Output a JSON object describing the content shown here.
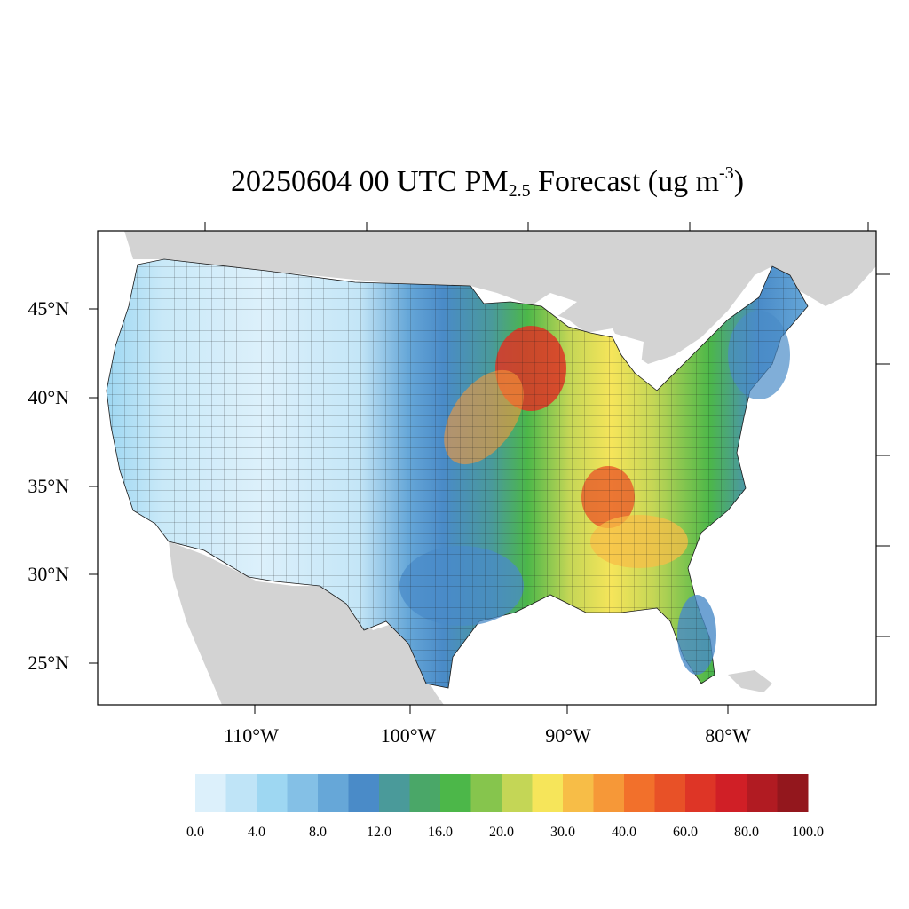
{
  "title": {
    "main": "20250604 00 UTC PM",
    "sub": "2.5",
    "tail": " Forecast (ug m",
    "sup": "-3",
    "close": ")"
  },
  "axes": {
    "lat_labels": [
      "45°N",
      "40°N",
      "35°N",
      "30°N",
      "25°N"
    ],
    "lon_labels": [
      "110°W",
      "100°W",
      "90°W",
      "80°W"
    ]
  },
  "colorbar": {
    "colors": [
      "#dcf0fb",
      "#bfe4f7",
      "#9ed7f2",
      "#84c0e6",
      "#66a7d8",
      "#4a8bc8",
      "#4a9a9a",
      "#4aa768",
      "#4cb749",
      "#86c54d",
      "#c4d656",
      "#f6e55a",
      "#f7bd47",
      "#f69838",
      "#f2702b",
      "#e85127",
      "#de3526",
      "#d01f26",
      "#b11b22",
      "#93171d"
    ],
    "labels": [
      "0.0",
      "4.0",
      "8.0",
      "12.0",
      "16.0",
      "20.0",
      "30.0",
      "40.0",
      "60.0",
      "80.0",
      "100.0"
    ]
  },
  "colors": {
    "background_land": "#d3d3d3",
    "water": "#ffffff",
    "frame": "#000000"
  }
}
